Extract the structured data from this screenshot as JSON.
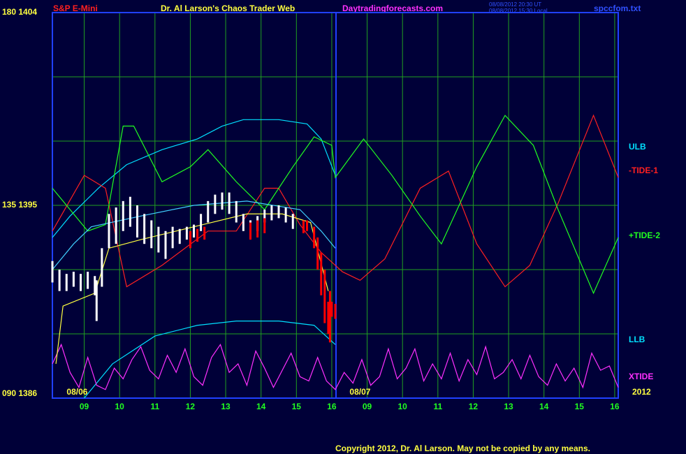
{
  "chart_data": {
    "type": "line",
    "symbol": "S&P E-Mini",
    "title": "Dr. Al Larson's Chaos Trader Web",
    "site": "Daytradingforecasts.com",
    "timestamps": [
      "08/08/2012 20:30 UT",
      "08/08/2012 15:30 Local"
    ],
    "file": "spccfom.txt",
    "year": "2012",
    "copyright": "Copyright 2012, Dr. Al Larson. May not be copied by any means.",
    "xlim": [
      0,
      16
    ],
    "ylim": [
      1386,
      1404
    ],
    "yticks": [
      {
        "value": 1386,
        "label": "090 1386"
      },
      {
        "value": 1395,
        "label": "135 1395"
      },
      {
        "value": 1404,
        "label": "180 1404"
      }
    ],
    "ygrid": [
      1386,
      1389,
      1392,
      1395,
      1398,
      1401,
      1404
    ],
    "xticks": [
      {
        "value": 0.9,
        "label": "09"
      },
      {
        "value": 1.9,
        "label": "10"
      },
      {
        "value": 2.9,
        "label": "11"
      },
      {
        "value": 3.9,
        "label": "12"
      },
      {
        "value": 4.9,
        "label": "13"
      },
      {
        "value": 5.9,
        "label": "14"
      },
      {
        "value": 6.9,
        "label": "15"
      },
      {
        "value": 7.9,
        "label": "16"
      },
      {
        "value": 8.9,
        "label": "09"
      },
      {
        "value": 9.9,
        "label": "10"
      },
      {
        "value": 10.9,
        "label": "11"
      },
      {
        "value": 11.9,
        "label": "12"
      },
      {
        "value": 12.9,
        "label": "13"
      },
      {
        "value": 13.9,
        "label": "14"
      },
      {
        "value": 14.9,
        "label": "15"
      },
      {
        "value": 15.9,
        "label": "16"
      }
    ],
    "date_labels": [
      {
        "value": 0.7,
        "label": "08/06"
      },
      {
        "value": 8.7,
        "label": "08/07"
      }
    ],
    "day_break": 8.02,
    "grid": true,
    "price_bars": [
      {
        "color": "#ffffff",
        "x": [
          0,
          0.2,
          0.4,
          0.6,
          0.8,
          1.0,
          1.2,
          1.25,
          1.4,
          1.6,
          1.8,
          2.0,
          2.2,
          2.4,
          2.6,
          2.8,
          3.0,
          3.2,
          3.4,
          3.6,
          3.8,
          4.0,
          4.2,
          4.4,
          4.6,
          4.8,
          5.0,
          5.2,
          5.4,
          5.6,
          5.8,
          6.0,
          6.2,
          6.4,
          6.6,
          6.8
        ],
        "high": [
          1392.4,
          1392.0,
          1391.8,
          1391.9,
          1391.8,
          1391.9,
          1391.7,
          1391.5,
          1393.0,
          1394.6,
          1394.9,
          1395.2,
          1395.4,
          1395.0,
          1394.6,
          1394.3,
          1394.0,
          1393.8,
          1394.0,
          1393.9,
          1394.0,
          1394.1,
          1394.6,
          1395.2,
          1395.5,
          1395.6,
          1395.6,
          1395.2,
          1394.6,
          1394.3,
          1394.5,
          1394.8,
          1395.0,
          1395.0,
          1394.9,
          1394.6
        ],
        "low": [
          1391.4,
          1391.0,
          1391.0,
          1391.2,
          1391.0,
          1391.1,
          1390.8,
          1389.6,
          1391.2,
          1393.0,
          1393.2,
          1393.8,
          1394.0,
          1393.5,
          1393.2,
          1393.0,
          1392.8,
          1392.5,
          1393.0,
          1393.2,
          1393.4,
          1393.5,
          1393.8,
          1394.2,
          1394.6,
          1394.8,
          1394.6,
          1394.2,
          1393.8,
          1393.6,
          1393.8,
          1394.2,
          1394.3,
          1394.4,
          1394.2,
          1393.9
        ]
      },
      {
        "color": "#ff0000",
        "x": [
          3.9,
          4.1,
          4.3,
          5.6,
          5.8,
          6.0,
          7.1,
          7.2,
          7.4,
          7.5,
          7.6,
          7.7,
          7.8,
          7.85,
          7.9,
          8.0
        ],
        "high": [
          1393.8,
          1393.9,
          1394.0,
          1394.2,
          1394.3,
          1394.4,
          1394.3,
          1394.3,
          1394.0,
          1393.5,
          1392.8,
          1392.0,
          1390.5,
          1391.0,
          1390.5,
          1390.4
        ],
        "low": [
          1393.0,
          1393.3,
          1393.4,
          1393.4,
          1393.5,
          1393.7,
          1393.7,
          1393.8,
          1393.0,
          1392.0,
          1390.8,
          1389.5,
          1389.0,
          1388.6,
          1389.8,
          1389.7
        ]
      }
    ],
    "series": [
      {
        "name": "ULB",
        "color": "#00e0ff",
        "x": [
          0,
          0.5,
          1.3,
          2.1,
          3.1,
          4.1,
          4.8,
          5.4,
          6.4,
          7.2,
          7.6,
          8.0
        ],
        "values": [
          1393.5,
          1394.5,
          1395.8,
          1396.9,
          1397.6,
          1398.1,
          1398.7,
          1399.0,
          1399.0,
          1398.8,
          1398.1,
          1396.4
        ]
      },
      {
        "name": "-TIDE-1",
        "color": "#ff2020",
        "x": [
          0,
          0.9,
          1.5,
          2.1,
          3.1,
          4.4,
          5.2,
          6.0,
          6.4,
          7.0,
          7.6,
          8.2,
          8.7,
          9.4,
          10.4,
          11.2,
          12.0,
          12.8,
          13.5,
          14.3,
          15.3,
          16.0
        ],
        "values": [
          1393.8,
          1396.4,
          1395.8,
          1391.2,
          1392.2,
          1393.8,
          1393.8,
          1395.8,
          1395.8,
          1394.1,
          1392.8,
          1391.9,
          1391.5,
          1392.5,
          1395.8,
          1396.6,
          1393.2,
          1391.2,
          1392.2,
          1395.1,
          1399.2,
          1396.3
        ]
      },
      {
        "name": "+TIDE-2",
        "color": "#20ff20",
        "x": [
          0,
          0.5,
          1.0,
          1.5,
          2.0,
          2.3,
          3.1,
          3.9,
          4.4,
          5.2,
          6.0,
          6.8,
          7.4,
          7.9,
          8.0,
          8.8,
          9.6,
          10.4,
          11.0,
          12.0,
          12.8,
          13.6,
          14.3,
          15.3,
          16.0
        ],
        "values": [
          1395.8,
          1394.8,
          1393.8,
          1394.1,
          1398.7,
          1398.7,
          1396.1,
          1396.8,
          1397.6,
          1396.1,
          1394.8,
          1396.8,
          1398.2,
          1397.8,
          1396.3,
          1398.1,
          1396.4,
          1394.5,
          1393.2,
          1396.8,
          1399.2,
          1397.8,
          1394.8,
          1390.9,
          1393.5
        ]
      },
      {
        "name": "LLB",
        "color": "#00e0ff",
        "x": [
          0.9,
          1.7,
          2.9,
          4.1,
          5.2,
          6.4,
          7.4,
          8.0
        ],
        "values": [
          1386.0,
          1387.6,
          1388.9,
          1389.4,
          1389.6,
          1389.6,
          1389.4,
          1388.5
        ]
      },
      {
        "name": "XTIDE",
        "color": "#ff30ff",
        "x": [
          0,
          0.25,
          0.5,
          0.75,
          1,
          1.25,
          1.5,
          1.75,
          2,
          2.25,
          2.5,
          2.75,
          3,
          3.25,
          3.5,
          3.75,
          4,
          4.25,
          4.5,
          4.75,
          5,
          5.25,
          5.5,
          5.75,
          6,
          6.25,
          6.5,
          6.75,
          7,
          7.25,
          7.5,
          7.75,
          8,
          8.25,
          8.5,
          8.75,
          9,
          9.25,
          9.5,
          9.75,
          10,
          10.25,
          10.5,
          10.75,
          11,
          11.25,
          11.5,
          11.75,
          12,
          12.25,
          12.5,
          12.75,
          13,
          13.25,
          13.5,
          13.75,
          14,
          14.25,
          14.5,
          14.75,
          15,
          15.25,
          15.5,
          15.75,
          16
        ],
        "values": [
          1387.6,
          1388.5,
          1387.2,
          1386.5,
          1387.9,
          1386.6,
          1386.4,
          1387.4,
          1386.9,
          1387.8,
          1388.4,
          1387.3,
          1386.9,
          1388.0,
          1387.2,
          1388.3,
          1387.0,
          1386.6,
          1387.9,
          1388.5,
          1387.2,
          1387.6,
          1386.6,
          1388.2,
          1387.4,
          1386.5,
          1387.3,
          1388.1,
          1387.0,
          1386.8,
          1387.9,
          1386.8,
          1386.4,
          1387.2,
          1386.7,
          1387.8,
          1386.6,
          1387.0,
          1388.3,
          1386.9,
          1387.4,
          1388.3,
          1386.8,
          1387.6,
          1386.9,
          1388.1,
          1386.8,
          1387.8,
          1387.1,
          1388.4,
          1386.9,
          1387.2,
          1387.8,
          1386.9,
          1388.0,
          1387.0,
          1386.6,
          1387.6,
          1386.8,
          1387.4,
          1386.5,
          1388.1,
          1387.3,
          1387.5,
          1386.5
        ]
      },
      {
        "color": "#40d0ff",
        "x": [
          0,
          0.6,
          1.1,
          2.5,
          4.0,
          5.5,
          7.0,
          7.6,
          8.0
        ],
        "values": [
          1392.0,
          1393.2,
          1394.0,
          1394.5,
          1395.0,
          1395.2,
          1394.8,
          1393.8,
          1393.0
        ]
      },
      {
        "color": "#ffff40",
        "x": [
          0.1,
          0.3,
          1.2,
          1.6,
          2.5,
          3.5,
          4.5,
          5.5,
          6.5,
          7.3,
          7.8
        ],
        "values": [
          1387.6,
          1390.3,
          1390.9,
          1393.0,
          1393.4,
          1393.8,
          1394.2,
          1394.6,
          1394.6,
          1394.2,
          1391.0
        ]
      }
    ]
  }
}
